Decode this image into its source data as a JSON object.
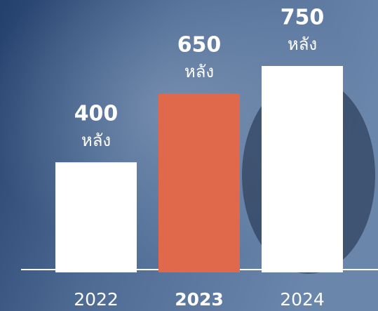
{
  "chart_data": {
    "type": "bar",
    "categories": [
      "2022",
      "2023",
      "2024"
    ],
    "values": [
      400,
      650,
      750
    ],
    "colors": [
      "#ffffff",
      "#e0694b",
      "#ffffff"
    ],
    "unit": "หลัง"
  }
}
